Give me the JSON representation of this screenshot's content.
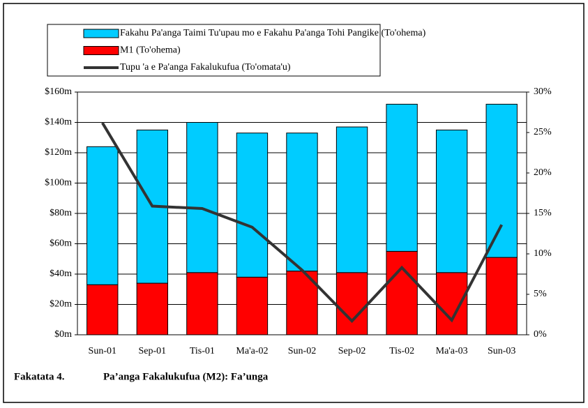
{
  "chart_data": {
    "type": "bar",
    "stacked": true,
    "caption_label": "Fakatata 4.",
    "title": "Pa’anga Fakalukufua (M2): Fa’unga",
    "categories": [
      "Sun-01",
      "Sep-01",
      "Tis-01",
      "Ma'a-02",
      "Sun-02",
      "Sep-02",
      "Tis-02",
      "Ma'a-03",
      "Sun-03"
    ],
    "series": [
      {
        "name": "M1 (To'ohema)",
        "color": "#ff0000",
        "values": [
          33,
          34,
          41,
          38,
          42,
          41,
          55,
          41,
          51
        ]
      },
      {
        "name": "Fakahu Pa'anga Taimi Tu'upau mo e Fakahu Pa'anga Tohi Pangike (To'ohema)",
        "color": "#00ccff",
        "values": [
          91,
          101,
          99,
          95,
          91,
          96,
          97,
          94,
          101
        ]
      },
      {
        "name": "Tupu 'a e Pa'anga Fakalukufua (To'omata'u)",
        "color": "#333333",
        "type": "line",
        "axis": "y2",
        "values": [
          26.2,
          15.9,
          15.6,
          13.3,
          8.0,
          1.7,
          8.3,
          1.8,
          13.6
        ]
      }
    ],
    "ylim": [
      0,
      160
    ],
    "yticks": [
      {
        "value": 0,
        "label": "$0m"
      },
      {
        "value": 20,
        "label": "$20m"
      },
      {
        "value": 40,
        "label": "$40m"
      },
      {
        "value": 60,
        "label": "$60m"
      },
      {
        "value": 80,
        "label": "$80m"
      },
      {
        "value": 100,
        "label": "$100m"
      },
      {
        "value": 120,
        "label": "$120m"
      },
      {
        "value": 140,
        "label": "$140m"
      },
      {
        "value": 160,
        "label": "$160m"
      }
    ],
    "y2lim": [
      0,
      30
    ],
    "y2ticks": [
      {
        "value": 0,
        "label": "0%"
      },
      {
        "value": 5,
        "label": "5%"
      },
      {
        "value": 10,
        "label": "10%"
      },
      {
        "value": 15,
        "label": "15%"
      },
      {
        "value": 20,
        "label": "20%"
      },
      {
        "value": 25,
        "label": "25%"
      },
      {
        "value": 30,
        "label": "30%"
      }
    ],
    "grid": true
  }
}
